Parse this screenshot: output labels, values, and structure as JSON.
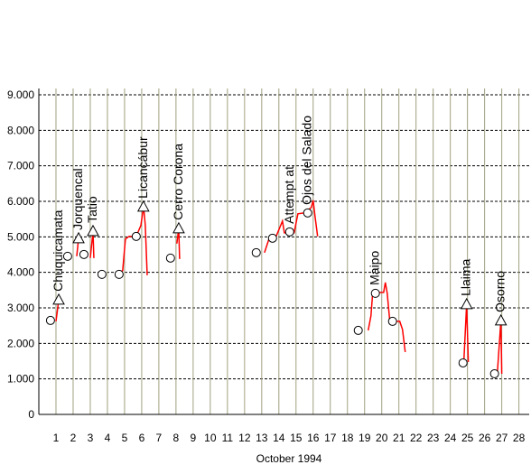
{
  "chart_data": {
    "type": "line",
    "xlabel": "October 1994",
    "xlim": [
      0,
      28.6
    ],
    "xticks": [
      1,
      2,
      3,
      4,
      5,
      6,
      7,
      8,
      9,
      10,
      11,
      12,
      13,
      14,
      15,
      16,
      17,
      18,
      19,
      20,
      21,
      22,
      23,
      24,
      25,
      26,
      27,
      28
    ],
    "ylim": [
      0,
      9000
    ],
    "yticks": [
      {
        "value": 0,
        "label": "0"
      },
      {
        "value": 1000,
        "label": "1.000"
      },
      {
        "value": 2000,
        "label": "2.000"
      },
      {
        "value": 3000,
        "label": "3.000"
      },
      {
        "value": 4000,
        "label": "4.000"
      },
      {
        "value": 5000,
        "label": "5.000"
      },
      {
        "value": 6000,
        "label": "6.000"
      },
      {
        "value": 7000,
        "label": "7.000"
      },
      {
        "value": 8000,
        "label": "8.000"
      },
      {
        "value": 9000,
        "label": "9.000"
      }
    ],
    "grid": true,
    "series": [
      {
        "color": "#ff0000",
        "marker": "none",
        "x": [
          1.0,
          1.11,
          1.16,
          null,
          2.21,
          2.32,
          null,
          3.0,
          3.11,
          3.16,
          3.21,
          null,
          4.53,
          4.89,
          5.05,
          5.26,
          5.68,
          5.95,
          6.11,
          6.21,
          6.32,
          null,
          8.05,
          8.16,
          8.21,
          null,
          13.16,
          13.42,
          13.84,
          14.21,
          14.32,
          14.89,
          15.11,
          15.47,
          15.89,
          16.0,
          16.11,
          16.26,
          null,
          19.21,
          19.37,
          19.47,
          19.79,
          20.11,
          20.21,
          20.32,
          20.47,
          21.05,
          21.21,
          21.37,
          null,
          24.79,
          24.95,
          25.05,
          null,
          26.74,
          26.95,
          27.0
        ],
        "values": [
          2621,
          3029,
          3232,
          null,
          4453,
          4962,
          null,
          4402,
          4911,
          5165,
          4402,
          null,
          3995,
          4046,
          4937,
          5013,
          5013,
          5318,
          5852,
          5318,
          3919,
          null,
          4810,
          5242,
          4377,
          null,
          4555,
          4937,
          5013,
          5445,
          5114,
          5114,
          5649,
          5674,
          5827,
          6031,
          5573,
          5013,
          null,
          2366,
          2774,
          3410,
          3436,
          3436,
          3715,
          3410,
          2621,
          2621,
          2392,
          1756,
          null,
          1501,
          3104,
          1476,
          null,
          1145,
          2646,
          1145
        ]
      },
      {
        "color": "#000000",
        "marker": "circle",
        "x": [
          0.68,
          1.68,
          2.63,
          3.68,
          4.68,
          5.68,
          7.68,
          12.68,
          13.63,
          14.63,
          15.68,
          18.63,
          19.63,
          20.63,
          24.74,
          26.58
        ],
        "values": [
          2646,
          4453,
          4504,
          3944,
          3944,
          5013,
          4402,
          4555,
          4962,
          5140,
          5674,
          2366,
          3410,
          2621,
          1450,
          1145
        ],
        "labels": [
          null,
          null,
          null,
          null,
          null,
          null,
          null,
          null,
          null,
          "Attempt at",
          "Ojos del Salado",
          null,
          "Maipo",
          null,
          null,
          null
        ]
      },
      {
        "color": "#000000",
        "marker": "triangle",
        "x": [
          1.16,
          2.32,
          3.16,
          6.1,
          8.16,
          24.95,
          26.95
        ],
        "values": [
          3232,
          4962,
          5165,
          5852,
          5242,
          3104,
          2646
        ],
        "labels": [
          "Chuquicamata",
          "Jorquencal",
          "Tatio",
          "Licancábur",
          "Cerro Corona",
          "Llaima",
          "Osorno"
        ]
      }
    ]
  }
}
